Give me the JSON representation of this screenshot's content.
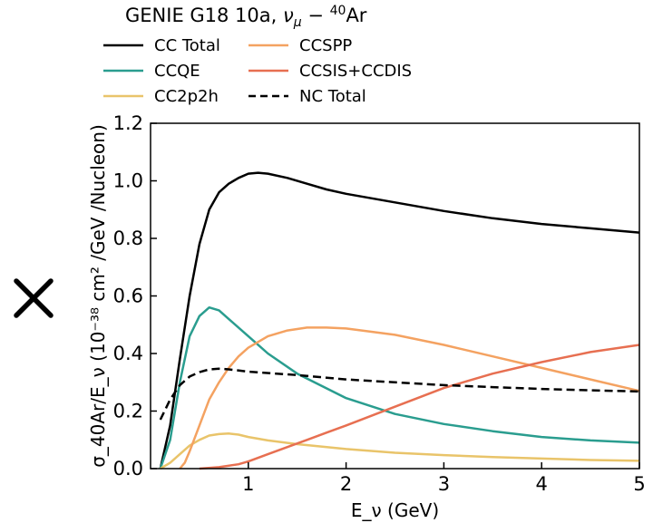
{
  "chart_data": {
    "type": "line",
    "title": "GENIE G18 10a, ν_μ − ⁴⁰Ar",
    "xlabel": "E_ν (GeV)",
    "ylabel": "σ_40Ar/E_ν (10⁻³⁸ cm² /GeV /Nucleon)",
    "xlim": [
      0,
      5
    ],
    "ylim": [
      0,
      1.2
    ],
    "xticks": [
      "1",
      "2",
      "3",
      "4",
      "5"
    ],
    "yticks": [
      "0.0",
      "0.2",
      "0.4",
      "0.6",
      "0.8",
      "1.0",
      "1.2"
    ],
    "legend_placement": "above plot, two columns",
    "grid": false,
    "series": [
      {
        "name": "CC Total",
        "color": "#000000",
        "dash": "solid",
        "points": [
          [
            0.1,
            0
          ],
          [
            0.2,
            0.15
          ],
          [
            0.3,
            0.38
          ],
          [
            0.4,
            0.6
          ],
          [
            0.5,
            0.78
          ],
          [
            0.6,
            0.9
          ],
          [
            0.7,
            0.96
          ],
          [
            0.8,
            0.99
          ],
          [
            0.9,
            1.01
          ],
          [
            1.0,
            1.025
          ],
          [
            1.1,
            1.028
          ],
          [
            1.2,
            1.025
          ],
          [
            1.4,
            1.01
          ],
          [
            1.6,
            0.99
          ],
          [
            1.8,
            0.97
          ],
          [
            2.0,
            0.955
          ],
          [
            2.5,
            0.925
          ],
          [
            3.0,
            0.895
          ],
          [
            3.5,
            0.87
          ],
          [
            4.0,
            0.85
          ],
          [
            4.5,
            0.835
          ],
          [
            5.0,
            0.82
          ]
        ]
      },
      {
        "name": "CCQE",
        "color": "#2a9d8f",
        "dash": "solid",
        "points": [
          [
            0.1,
            0
          ],
          [
            0.2,
            0.1
          ],
          [
            0.3,
            0.3
          ],
          [
            0.4,
            0.46
          ],
          [
            0.5,
            0.53
          ],
          [
            0.6,
            0.56
          ],
          [
            0.7,
            0.55
          ],
          [
            0.8,
            0.52
          ],
          [
            1.0,
            0.46
          ],
          [
            1.2,
            0.4
          ],
          [
            1.5,
            0.33
          ],
          [
            2.0,
            0.245
          ],
          [
            2.5,
            0.19
          ],
          [
            3.0,
            0.155
          ],
          [
            3.5,
            0.13
          ],
          [
            4.0,
            0.11
          ],
          [
            4.5,
            0.098
          ],
          [
            5.0,
            0.09
          ]
        ]
      },
      {
        "name": "CC2p2h",
        "color": "#e9c46a",
        "dash": "solid",
        "points": [
          [
            0.1,
            0
          ],
          [
            0.2,
            0.02
          ],
          [
            0.3,
            0.05
          ],
          [
            0.4,
            0.08
          ],
          [
            0.5,
            0.1
          ],
          [
            0.6,
            0.115
          ],
          [
            0.7,
            0.12
          ],
          [
            0.8,
            0.122
          ],
          [
            0.9,
            0.118
          ],
          [
            1.0,
            0.11
          ],
          [
            1.2,
            0.098
          ],
          [
            1.5,
            0.085
          ],
          [
            2.0,
            0.068
          ],
          [
            2.5,
            0.055
          ],
          [
            3.0,
            0.047
          ],
          [
            3.5,
            0.04
          ],
          [
            4.0,
            0.035
          ],
          [
            4.5,
            0.03
          ],
          [
            5.0,
            0.027
          ]
        ]
      },
      {
        "name": "CCSPP",
        "color": "#f4a261",
        "dash": "solid",
        "points": [
          [
            0.3,
            0
          ],
          [
            0.35,
            0.02
          ],
          [
            0.4,
            0.06
          ],
          [
            0.5,
            0.15
          ],
          [
            0.6,
            0.24
          ],
          [
            0.7,
            0.3
          ],
          [
            0.8,
            0.35
          ],
          [
            0.9,
            0.39
          ],
          [
            1.0,
            0.42
          ],
          [
            1.2,
            0.46
          ],
          [
            1.4,
            0.48
          ],
          [
            1.6,
            0.49
          ],
          [
            1.8,
            0.49
          ],
          [
            2.0,
            0.487
          ],
          [
            2.5,
            0.465
          ],
          [
            3.0,
            0.43
          ],
          [
            3.5,
            0.39
          ],
          [
            4.0,
            0.35
          ],
          [
            4.5,
            0.31
          ],
          [
            5.0,
            0.27
          ]
        ]
      },
      {
        "name": "CCSIS+CCDIS",
        "color": "#e76f51",
        "dash": "solid",
        "points": [
          [
            0.5,
            0
          ],
          [
            0.7,
            0.005
          ],
          [
            0.9,
            0.015
          ],
          [
            1.0,
            0.025
          ],
          [
            1.2,
            0.05
          ],
          [
            1.4,
            0.075
          ],
          [
            1.6,
            0.1
          ],
          [
            1.8,
            0.125
          ],
          [
            2.0,
            0.15
          ],
          [
            2.5,
            0.215
          ],
          [
            3.0,
            0.28
          ],
          [
            3.5,
            0.33
          ],
          [
            4.0,
            0.37
          ],
          [
            4.5,
            0.405
          ],
          [
            5.0,
            0.43
          ]
        ]
      },
      {
        "name": "NC Total",
        "color": "#000000",
        "dash": "dashed",
        "points": [
          [
            0.1,
            0.17
          ],
          [
            0.2,
            0.24
          ],
          [
            0.3,
            0.29
          ],
          [
            0.4,
            0.32
          ],
          [
            0.5,
            0.335
          ],
          [
            0.6,
            0.345
          ],
          [
            0.7,
            0.347
          ],
          [
            0.8,
            0.345
          ],
          [
            1.0,
            0.337
          ],
          [
            1.5,
            0.325
          ],
          [
            2.0,
            0.31
          ],
          [
            2.5,
            0.3
          ],
          [
            3.0,
            0.29
          ],
          [
            3.5,
            0.283
          ],
          [
            4.0,
            0.277
          ],
          [
            4.5,
            0.272
          ],
          [
            5.0,
            0.268
          ]
        ]
      }
    ]
  },
  "legend": {
    "items": [
      {
        "label": "CC Total",
        "color": "#000000",
        "dash": "solid"
      },
      {
        "label": "CCSPP",
        "color": "#f4a261",
        "dash": "solid"
      },
      {
        "label": "CCQE",
        "color": "#2a9d8f",
        "dash": "solid"
      },
      {
        "label": "CCSIS+CCDIS",
        "color": "#e76f51",
        "dash": "solid"
      },
      {
        "label": "CC2p2h",
        "color": "#e9c46a",
        "dash": "solid"
      },
      {
        "label": "NC Total",
        "color": "#000000",
        "dash": "dashed"
      }
    ]
  },
  "close_icon": "close-x-icon"
}
